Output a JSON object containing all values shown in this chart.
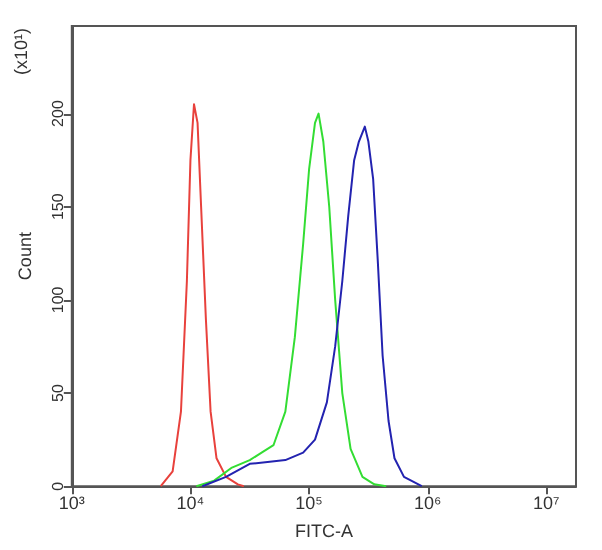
{
  "chart_data": {
    "type": "line",
    "xlabel": "FITC-A",
    "ylabel": "Count",
    "annotations": [
      "(x10¹)"
    ],
    "log": "x",
    "xlim": [
      1000,
      17782794
    ],
    "xticks": [
      {
        "value": 1000,
        "label": "10³"
      },
      {
        "value": 10000,
        "label": "10⁴"
      },
      {
        "value": 100000,
        "label": "10⁵"
      },
      {
        "value": 1000000,
        "label": "10⁶"
      },
      {
        "value": 10000000,
        "label": "10⁷"
      }
    ],
    "ylim": [
      0,
      247
    ],
    "yticks": [
      0,
      50,
      100,
      150,
      200
    ],
    "grid": false,
    "marker": "none",
    "line_style": "solid",
    "series": [
      {
        "color": "#e8413c",
        "x": [
          5623,
          7079,
          8318,
          9333,
          10000,
          10715,
          11482,
          12303,
          13490,
          14791,
          16596,
          19953,
          25119,
          28184
        ],
        "values": [
          0,
          8,
          40,
          110,
          175,
          205,
          195,
          150,
          90,
          40,
          15,
          5,
          1,
          0
        ]
      },
      {
        "color": "#33dd33",
        "x": [
          11220,
          15849,
          22387,
          31623,
          39811,
          50119,
          63096,
          75858,
          89125,
          100000,
          112202,
          120226,
          131826,
          147911,
          165959,
          190546,
          223872,
          281838,
          354813,
          446684
        ],
        "values": [
          0,
          3,
          10,
          14,
          18,
          22,
          40,
          80,
          130,
          170,
          195,
          200,
          185,
          150,
          100,
          50,
          20,
          5,
          1,
          0
        ]
      },
      {
        "color": "#2323b0",
        "x": [
          12589,
          19953,
          31623,
          44668,
          63096,
          89125,
          112202,
          141254,
          165959,
          190546,
          213796,
          239883,
          263027,
          295121,
          316228,
          346737,
          380189,
          416869,
          467735,
          524807,
          630957,
          891251
        ],
        "values": [
          0,
          5,
          12,
          13,
          14,
          18,
          25,
          45,
          75,
          110,
          145,
          175,
          185,
          193,
          185,
          165,
          120,
          70,
          35,
          15,
          5,
          0
        ]
      }
    ]
  }
}
